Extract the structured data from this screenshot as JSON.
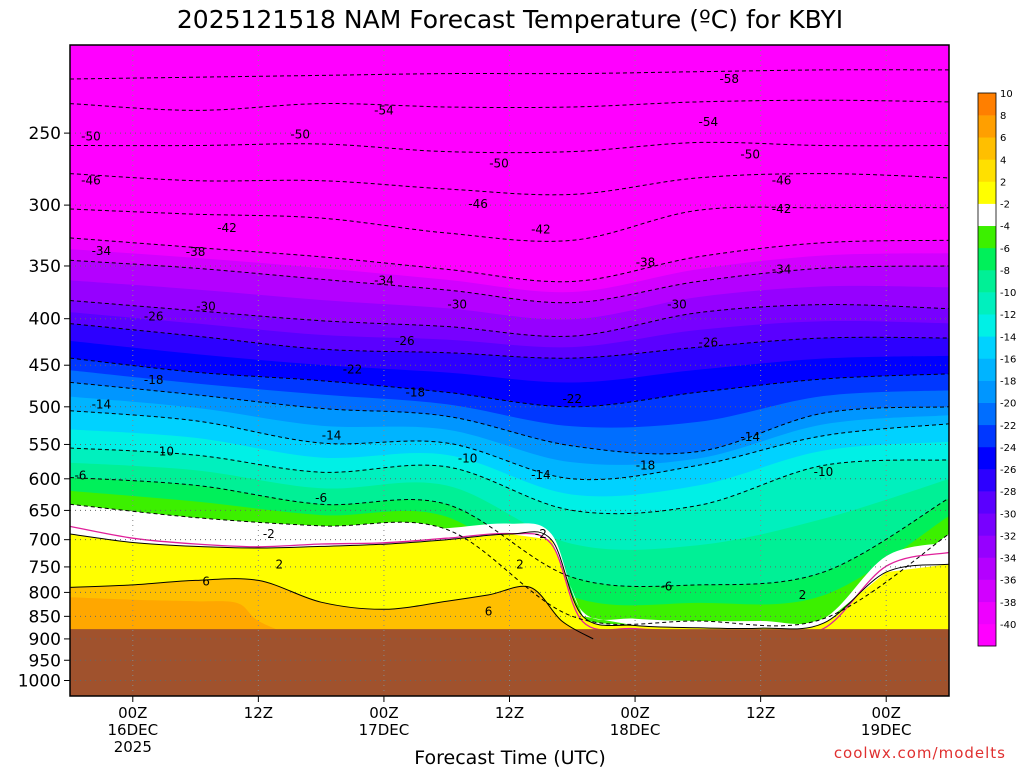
{
  "chart_data": {
    "type": "heatmap",
    "title": "2025121518 NAM Forecast Temperature (ºC) for KBYI",
    "xlabel": "Forecast Time (UTC)",
    "ylabel": "",
    "y_scale": "log-pressure",
    "y_ticks": [
      250,
      300,
      350,
      400,
      450,
      500,
      550,
      600,
      650,
      700,
      750,
      800,
      850,
      900,
      950,
      1000
    ],
    "x_ticks": [
      {
        "h": 6,
        "lines": [
          "00Z",
          "16DEC",
          "2025"
        ]
      },
      {
        "h": 18,
        "lines": [
          "12Z"
        ]
      },
      {
        "h": 30,
        "lines": [
          "00Z",
          "17DEC"
        ]
      },
      {
        "h": 42,
        "lines": [
          "12Z"
        ]
      },
      {
        "h": 54,
        "lines": [
          "00Z",
          "18DEC"
        ]
      },
      {
        "h": 66,
        "lines": [
          "12Z"
        ]
      },
      {
        "h": 78,
        "lines": [
          "00Z",
          "19DEC"
        ]
      }
    ],
    "x_range_hours": [
      0,
      84
    ],
    "y_range_hPa": [
      200,
      1040
    ],
    "grid": true,
    "terrain_color": "#a0522d",
    "colorbar": {
      "levels": [
        -40,
        -38,
        -36,
        -34,
        -32,
        -30,
        -28,
        -26,
        -24,
        -22,
        -20,
        -18,
        -16,
        -14,
        -12,
        -10,
        -8,
        -6,
        -4,
        -2,
        2,
        4,
        6,
        8,
        10
      ],
      "colors": [
        "#ff00ff",
        "#ee00ff",
        "#d200ff",
        "#b400ff",
        "#9600ff",
        "#7800ff",
        "#5a00ff",
        "#2d00ff",
        "#0000ff",
        "#0037ff",
        "#006eff",
        "#0096ff",
        "#00b4ff",
        "#00d2ff",
        "#00f0e6",
        "#00f0be",
        "#00f096",
        "#00f05a",
        "#3cf000",
        "#ffffff",
        "#ffff00",
        "#ffe000",
        "#ffbf00",
        "#ff9f00",
        "#ff7f00"
      ]
    },
    "isotherms": [
      {
        "value": -58,
        "p": [
          218,
          217,
          216,
          215,
          215,
          214,
          213,
          213
        ]
      },
      {
        "value": -54,
        "p": [
          232,
          236,
          232,
          234,
          234,
          231,
          230,
          231
        ]
      },
      {
        "value": -50,
        "p": [
          258,
          258,
          257,
          262,
          262,
          256,
          258,
          258
        ]
      },
      {
        "value": -46,
        "p": [
          277,
          282,
          282,
          288,
          292,
          280,
          277,
          280
        ]
      },
      {
        "value": -42,
        "p": [
          303,
          307,
          310,
          322,
          328,
          304,
          302,
          302
        ]
      },
      {
        "value": -38,
        "p": [
          326,
          334,
          342,
          353,
          364,
          342,
          330,
          328
        ]
      },
      {
        "value": -34,
        "p": [
          345,
          352,
          362,
          372,
          384,
          364,
          352,
          350
        ]
      },
      {
        "value": -30,
        "p": [
          382,
          392,
          402,
          408,
          418,
          394,
          386,
          390
        ]
      },
      {
        "value": -26,
        "p": [
          405,
          418,
          432,
          436,
          442,
          430,
          420,
          420
        ]
      },
      {
        "value": -22,
        "p": [
          442,
          458,
          468,
          482,
          500,
          482,
          466,
          460
        ]
      },
      {
        "value": -18,
        "p": [
          470,
          485,
          502,
          512,
          552,
          560,
          508,
          500
        ]
      },
      {
        "value": -14,
        "p": [
          505,
          518,
          548,
          548,
          600,
          580,
          538,
          522
        ]
      },
      {
        "value": -10,
        "p": [
          555,
          565,
          590,
          582,
          650,
          642,
          580,
          572
        ]
      },
      {
        "value": -6,
        "p": [
          598,
          610,
          640,
          640,
          770,
          785,
          760,
          630
        ]
      },
      {
        "value": -2,
        "p": [
          640,
          662,
          676,
          682,
          850,
          860,
          855,
          690
        ]
      }
    ],
    "isotherm_labels": [
      {
        "h": 2,
        "p": 252,
        "t": "-50"
      },
      {
        "h": 2,
        "p": 282,
        "t": "-46"
      },
      {
        "h": 22,
        "p": 251,
        "t": "-50"
      },
      {
        "h": 30,
        "p": 236,
        "t": "-54"
      },
      {
        "h": 41,
        "p": 270,
        "t": "-50"
      },
      {
        "h": 39,
        "p": 299,
        "t": "-46"
      },
      {
        "h": 45,
        "p": 319,
        "t": "-42"
      },
      {
        "h": 63,
        "p": 218,
        "t": "-58"
      },
      {
        "h": 61,
        "p": 243,
        "t": "-54"
      },
      {
        "h": 65,
        "p": 264,
        "t": "-50"
      },
      {
        "h": 68,
        "p": 282,
        "t": "-46"
      },
      {
        "h": 68,
        "p": 303,
        "t": "-42"
      },
      {
        "h": 15,
        "p": 318,
        "t": "-42"
      },
      {
        "h": 3,
        "p": 337,
        "t": "-34"
      },
      {
        "h": 12,
        "p": 338,
        "t": "-38"
      },
      {
        "h": 30,
        "p": 363,
        "t": "-34"
      },
      {
        "h": 55,
        "p": 347,
        "t": "-38"
      },
      {
        "h": 68,
        "p": 353,
        "t": "-34"
      },
      {
        "h": 13,
        "p": 388,
        "t": "-30"
      },
      {
        "h": 37,
        "p": 386,
        "t": "-30"
      },
      {
        "h": 58,
        "p": 386,
        "t": "-30"
      },
      {
        "h": 8,
        "p": 398,
        "t": "-26"
      },
      {
        "h": 32,
        "p": 423,
        "t": "-26"
      },
      {
        "h": 61,
        "p": 425,
        "t": "-26"
      },
      {
        "h": 27,
        "p": 455,
        "t": "-22"
      },
      {
        "h": 48,
        "p": 490,
        "t": "-22"
      },
      {
        "h": 8,
        "p": 467,
        "t": "-18"
      },
      {
        "h": 33,
        "p": 482,
        "t": "-18"
      },
      {
        "h": 55,
        "p": 580,
        "t": "-18"
      },
      {
        "h": 3,
        "p": 497,
        "t": "-14"
      },
      {
        "h": 25,
        "p": 538,
        "t": "-14"
      },
      {
        "h": 45,
        "p": 594,
        "t": "-14"
      },
      {
        "h": 65,
        "p": 540,
        "t": "-14"
      },
      {
        "h": 9,
        "p": 560,
        "t": "-10"
      },
      {
        "h": 38,
        "p": 570,
        "t": "-10"
      },
      {
        "h": 72,
        "p": 590,
        "t": "-10"
      },
      {
        "h": 1,
        "p": 595,
        "t": "-6"
      },
      {
        "h": 24,
        "p": 630,
        "t": "-6"
      },
      {
        "h": 57,
        "p": 788,
        "t": "-6"
      },
      {
        "h": 19,
        "p": 690,
        "t": "-2"
      },
      {
        "h": 45,
        "p": 690,
        "t": "-2"
      },
      {
        "h": 20,
        "p": 745,
        "t": "2"
      },
      {
        "h": 43,
        "p": 745,
        "t": "2"
      },
      {
        "h": 70,
        "p": 805,
        "t": "2"
      },
      {
        "h": 13,
        "p": 778,
        "t": "6"
      },
      {
        "h": 40,
        "p": 840,
        "t": "6"
      }
    ]
  },
  "credit": "coolwx.com/modelts"
}
